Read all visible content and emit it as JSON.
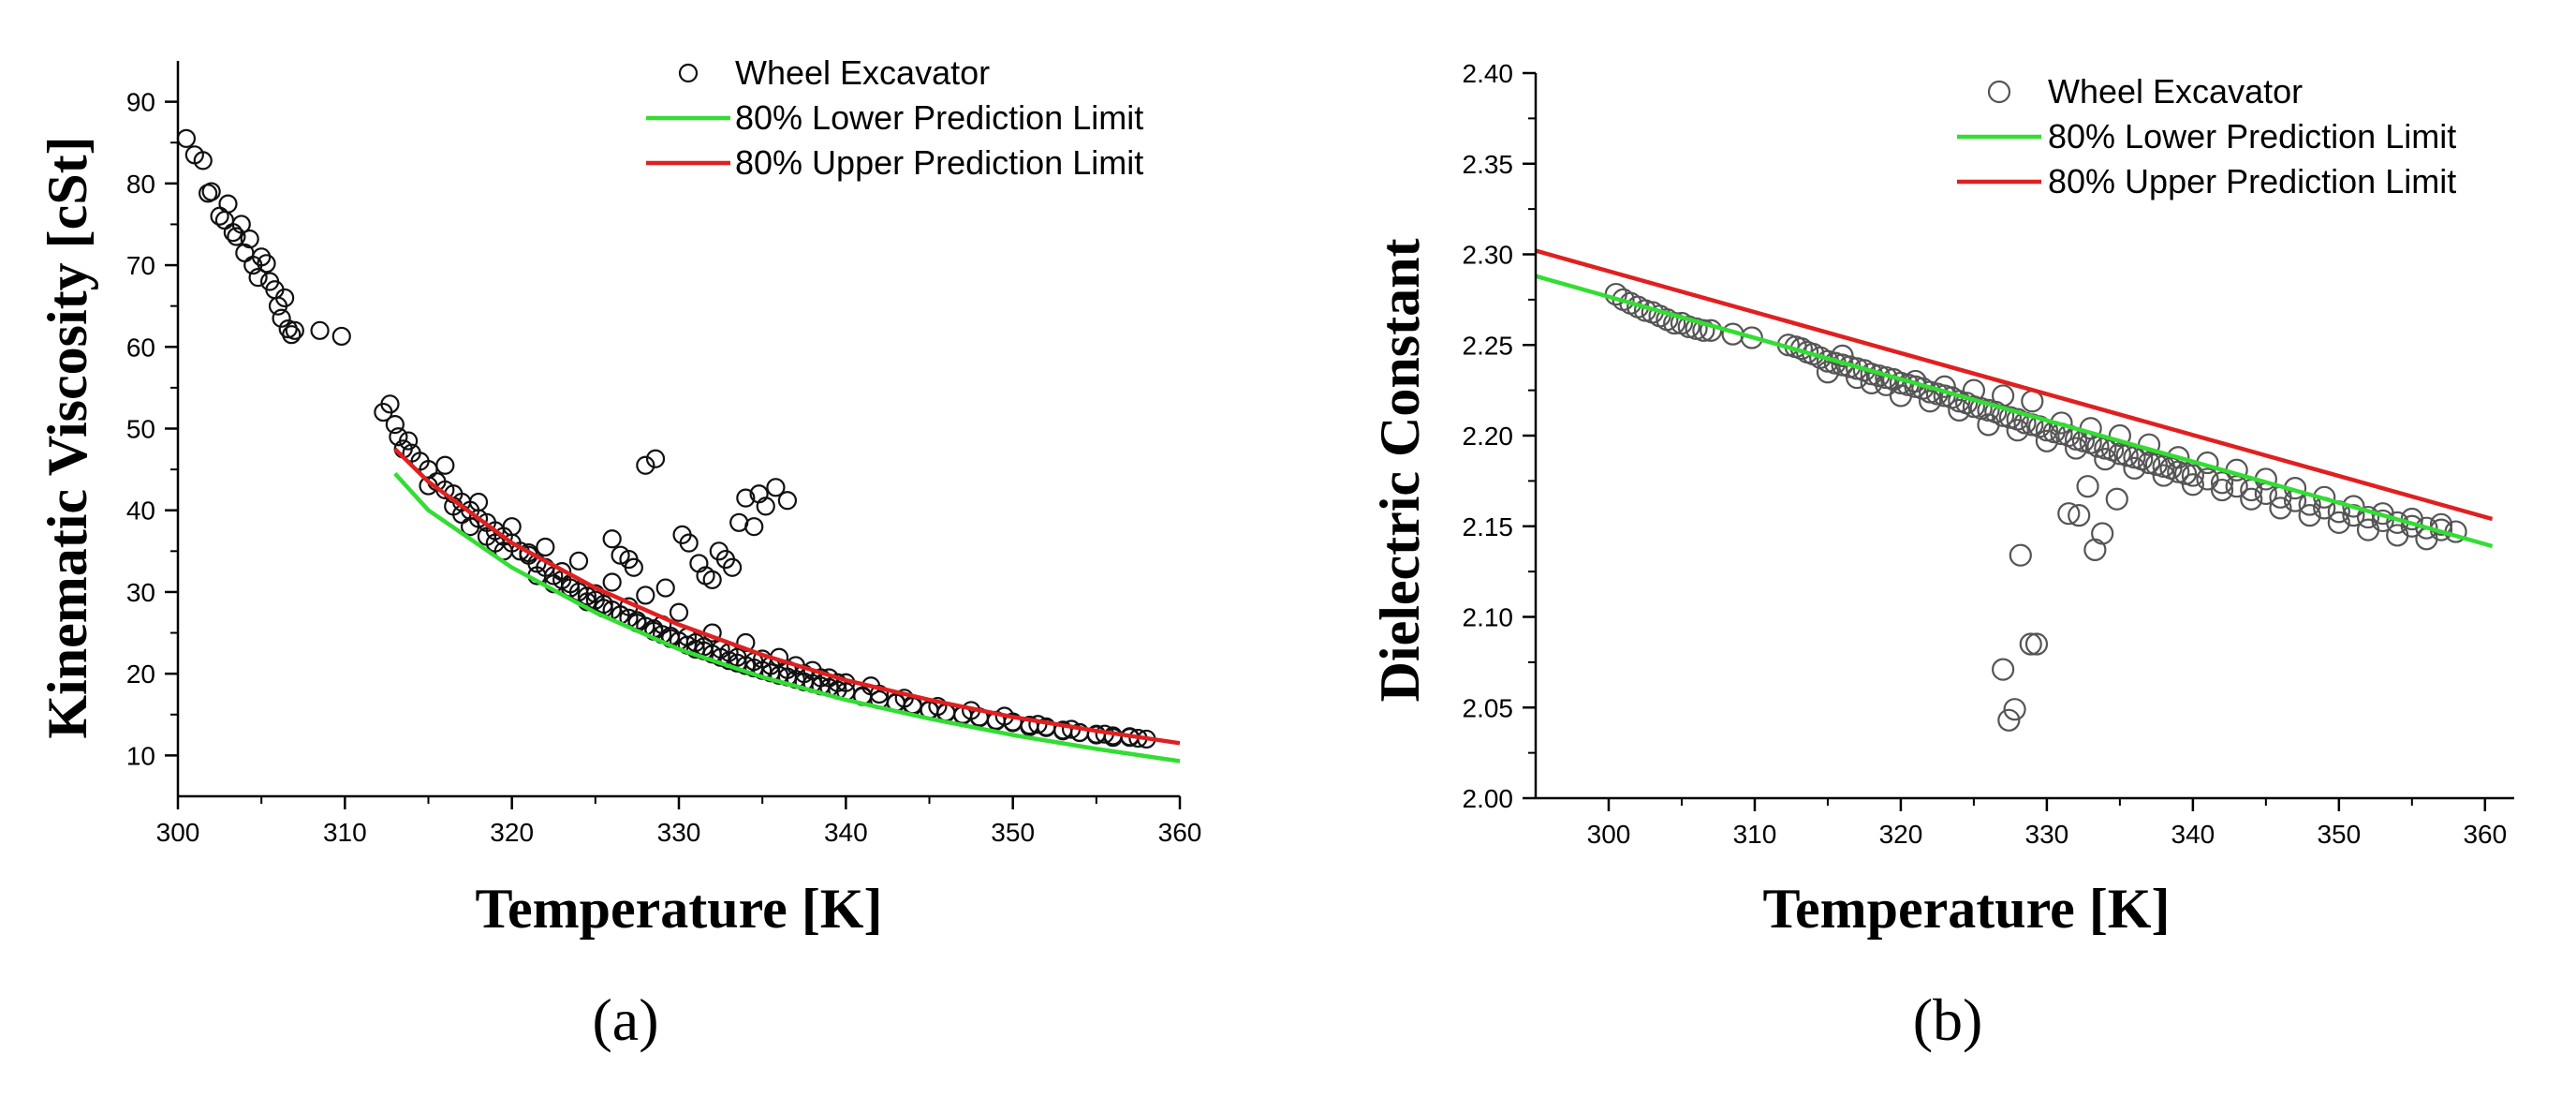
{
  "chart_data": [
    {
      "type": "scatter",
      "panel_label": "(a)",
      "xlabel": "Temperature [K]",
      "ylabel": "Kinematic Viscosity [cSt]",
      "xlim": [
        300,
        360
      ],
      "ylim": [
        5,
        95
      ],
      "xticks": [
        300,
        310,
        320,
        330,
        340,
        350,
        360
      ],
      "yticks": [
        10,
        20,
        30,
        40,
        50,
        60,
        70,
        80,
        90
      ],
      "legend_position": "top-right",
      "colors": {
        "points": "#111111",
        "lower": "#33dd33",
        "upper": "#e02020"
      },
      "series": [
        {
          "name": "Wheel Excavator",
          "kind": "markers",
          "x": [
            300.5,
            301.0,
            301.5,
            301.8,
            302.0,
            302.5,
            302.8,
            303.0,
            303.3,
            303.5,
            303.8,
            304.0,
            304.3,
            304.5,
            304.8,
            305.0,
            305.3,
            305.5,
            305.8,
            306.0,
            306.2,
            306.4,
            306.6,
            306.8,
            307.0,
            308.5,
            309.8,
            312.3,
            312.7,
            313.0,
            313.2,
            313.5,
            313.8,
            314.0,
            314.5,
            315.0,
            315.5,
            316.0,
            316.5,
            317.0,
            317.5,
            318.0,
            318.5,
            319.0,
            319.5,
            320.0,
            320.5,
            321.0,
            321.5,
            322.0,
            322.5,
            323.0,
            323.5,
            324.0,
            324.5,
            325.0,
            325.5,
            326.0,
            326.5,
            327.0,
            327.5,
            328.0,
            328.5,
            329.0,
            329.5,
            330.0,
            330.5,
            331.0,
            331.5,
            332.0,
            332.5,
            333.0,
            333.5,
            334.0,
            334.5,
            335.0,
            335.5,
            336.0,
            336.5,
            337.0,
            337.5,
            338.0,
            338.5,
            339.0,
            339.5,
            340.0,
            341.0,
            342.0,
            343.0,
            344.0,
            345.0,
            346.0,
            347.0,
            348.0,
            349.0,
            350.0,
            351.0,
            352.0,
            353.0,
            354.0,
            355.0,
            356.0,
            357.0,
            358.0,
            315.0,
            317.0,
            319.0,
            321.0,
            323.0,
            325.0,
            327.0,
            329.0,
            331.0,
            333.0,
            335.0,
            337.0,
            339.0,
            341.0,
            343.0,
            345.0,
            347.0,
            349.0,
            351.0,
            353.0,
            355.0,
            357.0,
            316.0,
            318.0,
            320.0,
            322.0,
            324.0,
            326.0,
            328.0,
            330.0,
            332.0,
            334.0,
            336.0,
            338.0,
            340.0,
            342.0,
            344.0,
            346.0,
            348.0,
            350.0,
            352.0,
            354.0,
            356.0,
            316.5,
            317.5,
            318.5,
            319.5,
            321.5,
            322.5,
            323.5,
            324.5,
            325.5,
            326.5,
            327.5,
            328.5,
            329.5,
            330.5,
            331.5,
            332.5,
            333.5,
            334.5,
            335.5,
            336.5,
            337.5,
            338.5,
            339.5,
            341.5,
            343.5,
            345.5,
            347.5,
            349.5,
            351.5,
            353.5,
            355.5,
            357.5,
            326.0,
            326.5,
            327.0,
            327.3,
            328.0,
            328.6,
            329.2,
            330.2,
            330.6,
            331.2,
            331.6,
            332.0,
            332.4,
            332.8,
            333.2,
            333.6,
            334.0,
            334.5,
            334.8,
            335.2,
            335.8,
            336.5
          ],
          "y": [
            85.5,
            83.5,
            82.8,
            78.8,
            79.0,
            76.0,
            75.5,
            77.5,
            74.0,
            73.5,
            75.0,
            71.5,
            73.2,
            70.0,
            68.5,
            71.0,
            70.2,
            68.0,
            67.0,
            65.0,
            63.5,
            66.0,
            62.2,
            61.5,
            62.0,
            62.0,
            61.3,
            52.0,
            53.0,
            50.5,
            49.0,
            47.5,
            48.5,
            47.0,
            46.0,
            45.0,
            43.5,
            42.5,
            42.0,
            41.0,
            40.0,
            39.0,
            38.5,
            37.5,
            36.8,
            36.0,
            35.0,
            34.5,
            33.5,
            33.0,
            32.0,
            31.5,
            31.0,
            30.0,
            29.5,
            29.0,
            28.5,
            27.8,
            27.2,
            26.8,
            26.2,
            25.8,
            25.2,
            24.8,
            24.3,
            24.0,
            23.5,
            23.0,
            22.8,
            22.4,
            22.0,
            21.6,
            21.3,
            21.0,
            20.7,
            20.4,
            20.1,
            19.8,
            19.6,
            19.3,
            19.0,
            18.8,
            18.5,
            18.3,
            18.0,
            17.8,
            17.3,
            16.8,
            16.4,
            16.0,
            15.6,
            15.2,
            14.9,
            14.6,
            14.3,
            14.0,
            13.7,
            13.4,
            13.1,
            12.8,
            12.6,
            12.4,
            12.2,
            12.0,
            43.0,
            39.5,
            36.0,
            34.8,
            32.5,
            29.8,
            28.2,
            26.0,
            23.8,
            22.6,
            21.8,
            21.0,
            19.5,
            17.2,
            16.5,
            15.5,
            15.0,
            14.2,
            13.5,
            13.0,
            12.5,
            12.3,
            45.5,
            41.0,
            38.0,
            35.5,
            33.8,
            31.2,
            29.6,
            27.5,
            25.0,
            23.8,
            22.0,
            20.4,
            18.9,
            17.5,
            16.2,
            15.3,
            14.7,
            14.1,
            13.5,
            12.8,
            12.2,
            40.5,
            38.0,
            36.8,
            35.0,
            32.0,
            31.0,
            30.5,
            28.8,
            28.0,
            27.2,
            26.5,
            25.5,
            24.6,
            24.5,
            23.3,
            23.0,
            22.0,
            21.5,
            21.0,
            20.5,
            20.0,
            19.5,
            18.9,
            18.5,
            17.0,
            16.0,
            15.5,
            14.8,
            13.8,
            13.2,
            12.6,
            12.1,
            36.5,
            34.5,
            34.0,
            33.0,
            45.5,
            46.3,
            30.5,
            37.0,
            36.0,
            33.5,
            32.0,
            31.5,
            35.0,
            34.0,
            33.0,
            38.5,
            41.5,
            38.0,
            42.0,
            40.5,
            42.8,
            41.2
          ]
        },
        {
          "name": "80% Lower Prediction Limit",
          "kind": "line",
          "x": [
            313,
            315,
            320,
            325,
            330,
            335,
            340,
            345,
            350,
            355,
            360
          ],
          "y": [
            44.5,
            40.0,
            33.0,
            27.5,
            23.0,
            19.6,
            16.8,
            14.5,
            12.5,
            10.8,
            9.3
          ]
        },
        {
          "name": "80% Upper Prediction Limit",
          "kind": "line",
          "x": [
            313,
            315,
            320,
            325,
            330,
            335,
            340,
            345,
            350,
            355,
            360
          ],
          "y": [
            47.5,
            43.5,
            36.0,
            30.5,
            26.0,
            22.3,
            19.2,
            16.8,
            14.7,
            13.0,
            11.5
          ]
        }
      ]
    },
    {
      "type": "scatter",
      "panel_label": "(b)",
      "xlabel": "Temperature [K]",
      "ylabel": "Dielectric Constant",
      "xlim": [
        295,
        362
      ],
      "ylim": [
        2.0,
        2.4
      ],
      "xticks": [
        300,
        310,
        320,
        330,
        340,
        350,
        360
      ],
      "yticks": [
        "2.00",
        "2.05",
        "2.10",
        "2.15",
        "2.20",
        "2.25",
        "2.30",
        "2.35",
        "2.40"
      ],
      "legend_position": "top-right",
      "colors": {
        "points": "#555555",
        "lower": "#33dd33",
        "upper": "#e02020"
      },
      "series": [
        {
          "name": "Wheel Excavator",
          "kind": "markers",
          "x": [
            300.5,
            301.0,
            301.5,
            302.0,
            302.5,
            303.0,
            303.5,
            304.0,
            304.5,
            305.0,
            305.5,
            306.0,
            306.5,
            307.0,
            308.5,
            309.8,
            312.3,
            312.8,
            313.2,
            313.6,
            314.0,
            314.5,
            315.0,
            315.5,
            316.0,
            316.5,
            317.0,
            317.5,
            318.0,
            318.5,
            319.0,
            319.5,
            320.0,
            320.5,
            321.0,
            321.5,
            322.0,
            322.5,
            323.0,
            323.5,
            324.0,
            324.5,
            325.0,
            325.5,
            326.0,
            326.5,
            327.0,
            327.5,
            328.0,
            328.5,
            329.0,
            329.5,
            330.0,
            330.5,
            331.0,
            331.5,
            332.0,
            332.5,
            333.0,
            333.5,
            334.0,
            334.5,
            335.0,
            335.5,
            336.0,
            336.5,
            337.0,
            337.5,
            338.0,
            338.5,
            339.0,
            339.5,
            340.0,
            341.0,
            342.0,
            343.0,
            344.0,
            345.0,
            346.0,
            347.0,
            348.0,
            349.0,
            350.0,
            351.0,
            352.0,
            353.0,
            354.0,
            355.0,
            356.0,
            357.0,
            358.0,
            315.0,
            317.0,
            319.0,
            321.0,
            323.0,
            325.0,
            327.0,
            329.0,
            331.0,
            333.0,
            335.0,
            337.0,
            339.0,
            341.0,
            343.0,
            345.0,
            347.0,
            349.0,
            351.0,
            353.0,
            355.0,
            357.0,
            316.0,
            318.0,
            320.0,
            322.0,
            324.0,
            326.0,
            328.0,
            330.0,
            332.0,
            334.0,
            336.0,
            338.0,
            340.0,
            342.0,
            344.0,
            346.0,
            348.0,
            350.0,
            352.0,
            354.0,
            356.0,
            327.0,
            327.4,
            327.8,
            328.2,
            328.9,
            329.3,
            331.5,
            332.2,
            332.8,
            333.3,
            333.8,
            334.8
          ],
          "y": [
            2.278,
            2.275,
            2.273,
            2.271,
            2.269,
            2.268,
            2.266,
            2.264,
            2.262,
            2.262,
            2.26,
            2.259,
            2.258,
            2.258,
            2.256,
            2.254,
            2.25,
            2.249,
            2.248,
            2.246,
            2.245,
            2.243,
            2.241,
            2.24,
            2.239,
            2.238,
            2.237,
            2.236,
            2.234,
            2.233,
            2.232,
            2.231,
            2.229,
            2.228,
            2.227,
            2.226,
            2.224,
            2.223,
            2.222,
            2.221,
            2.219,
            2.218,
            2.216,
            2.215,
            2.214,
            2.213,
            2.211,
            2.21,
            2.209,
            2.207,
            2.206,
            2.205,
            2.203,
            2.202,
            2.201,
            2.2,
            2.198,
            2.197,
            2.196,
            2.194,
            2.193,
            2.192,
            2.19,
            2.189,
            2.188,
            2.187,
            2.185,
            2.184,
            2.183,
            2.182,
            2.18,
            2.179,
            2.178,
            2.176,
            2.174,
            2.172,
            2.17,
            2.168,
            2.166,
            2.164,
            2.162,
            2.16,
            2.158,
            2.156,
            2.155,
            2.153,
            2.152,
            2.15,
            2.149,
            2.148,
            2.147,
            2.235,
            2.232,
            2.228,
            2.23,
            2.227,
            2.225,
            2.222,
            2.219,
            2.207,
            2.204,
            2.2,
            2.195,
            2.188,
            2.185,
            2.181,
            2.176,
            2.171,
            2.166,
            2.161,
            2.157,
            2.154,
            2.151,
            2.244,
            2.229,
            2.222,
            2.219,
            2.214,
            2.206,
            2.203,
            2.197,
            2.193,
            2.187,
            2.182,
            2.178,
            2.173,
            2.17,
            2.165,
            2.16,
            2.156,
            2.152,
            2.148,
            2.145,
            2.143,
            2.071,
            2.043,
            2.049,
            2.134,
            2.085,
            2.085,
            2.157,
            2.156,
            2.172,
            2.137,
            2.146,
            2.165
          ]
        },
        {
          "name": "80% Lower Prediction Limit",
          "kind": "line",
          "x": [
            295,
            360.5
          ],
          "y": [
            2.288,
            2.139
          ]
        },
        {
          "name": "80% Upper Prediction Limit",
          "kind": "line",
          "x": [
            295,
            360.5
          ],
          "y": [
            2.302,
            2.154
          ]
        }
      ]
    }
  ]
}
